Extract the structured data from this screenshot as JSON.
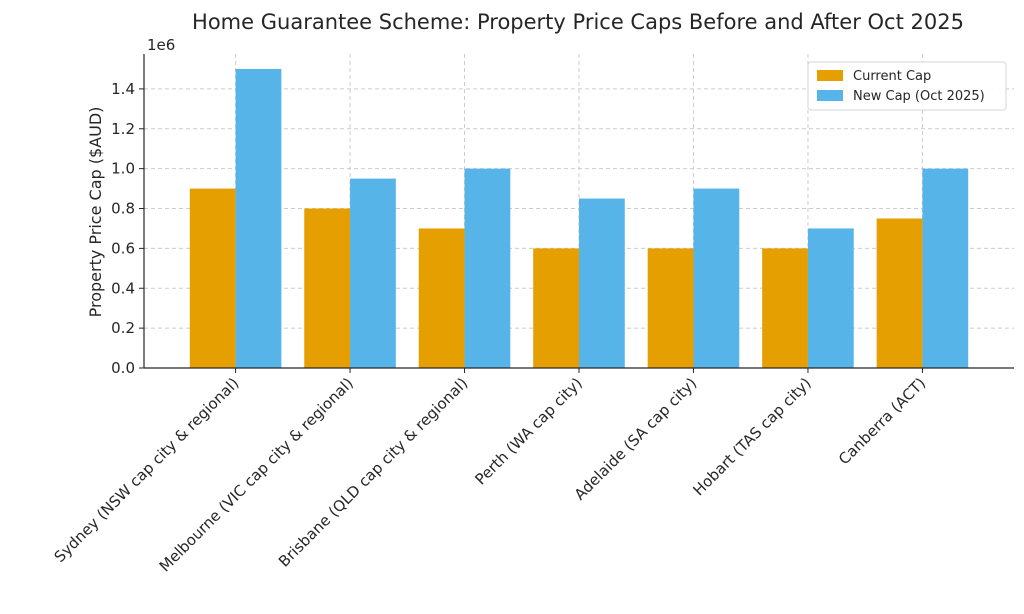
{
  "chart_data": {
    "type": "bar",
    "title": "Home Guarantee Scheme: Property Price Caps Before and After Oct 2025",
    "xlabel": "",
    "ylabel": "Property Price Cap ($AUD)",
    "y_scale_label": "1e6",
    "ylim": [
      0,
      1.575
    ],
    "y_unit_multiplier": 1000000,
    "yticks": [
      "0.0",
      "0.2",
      "0.4",
      "0.6",
      "0.8",
      "1.0",
      "1.2",
      "1.4"
    ],
    "grid": true,
    "legend_position": "top-right",
    "categories": [
      "Sydney (NSW cap city & regional)",
      "Melbourne (VIC cap city & regional)",
      "Brisbane (QLD cap city & regional)",
      "Perth (WA cap city)",
      "Adelaide (SA cap city)",
      "Hobart (TAS cap city)",
      "Canberra (ACT)"
    ],
    "series": [
      {
        "name": "Current Cap",
        "color": "#E69F00",
        "values": [
          900000,
          800000,
          700000,
          600000,
          600000,
          600000,
          750000
        ]
      },
      {
        "name": "New Cap (Oct 2025)",
        "color": "#56B4E9",
        "values": [
          1500000,
          950000,
          1000000,
          850000,
          900000,
          700000,
          1000000
        ]
      }
    ]
  }
}
